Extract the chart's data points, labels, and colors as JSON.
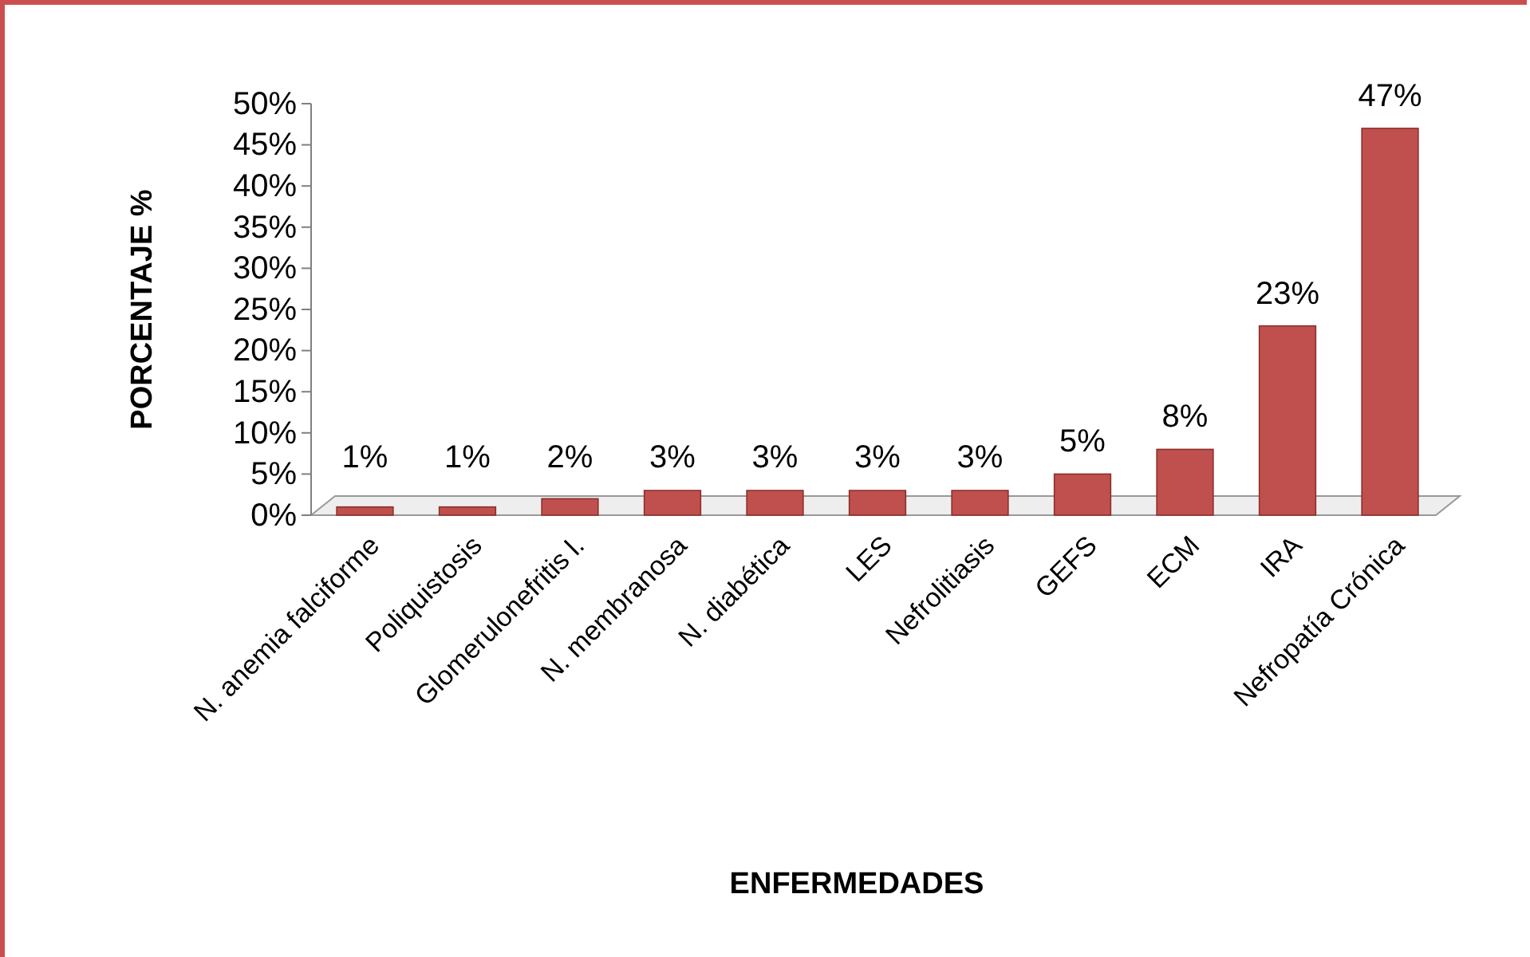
{
  "chart_data": {
    "type": "bar",
    "xlabel": "ENFERMEDADES",
    "ylabel": "PORCENTAJE %",
    "categories": [
      "N. anemia falciforme",
      "Poliquistosis",
      "Glomerulonefritis l.",
      "N. membranosa",
      "N. diabética",
      "LES",
      "Nefrolitiasis",
      "GEFS",
      "ECM",
      "IRA",
      "Nefropatía Crónica"
    ],
    "values": [
      1,
      1,
      2,
      3,
      3,
      3,
      3,
      5,
      8,
      23,
      47
    ],
    "value_labels": [
      "1%",
      "1%",
      "2%",
      "3%",
      "3%",
      "3%",
      "3%",
      "5%",
      "8%",
      "23%",
      "47%"
    ],
    "color": "#c0504d",
    "ylim": [
      0,
      50
    ],
    "yticks": [
      {
        "value": 0,
        "label": "0%"
      },
      {
        "value": 5,
        "label": "5%"
      },
      {
        "value": 10,
        "label": "10%"
      },
      {
        "value": 15,
        "label": "15%"
      },
      {
        "value": 20,
        "label": "20%"
      },
      {
        "value": 25,
        "label": "25%"
      },
      {
        "value": 30,
        "label": "30%"
      },
      {
        "value": 35,
        "label": "35%"
      },
      {
        "value": 40,
        "label": "40%"
      },
      {
        "value": 45,
        "label": "45%"
      },
      {
        "value": 50,
        "label": "50%"
      }
    ],
    "grid": false
  }
}
